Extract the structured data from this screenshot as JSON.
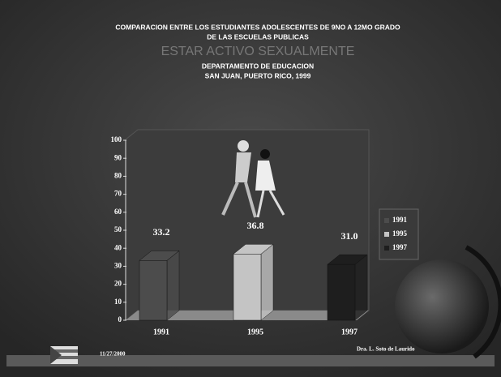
{
  "chart_data": {
    "type": "bar",
    "title": [
      "COMPARACION ENTRE LOS ESTUDIANTES ADOLESCENTES DE 9NO A 12MO GRADO",
      "DE LAS ESCUELAS PUBLICAS"
    ],
    "subtitle": "ESTAR ACTIVO SEXUALMENTE",
    "annotations": [
      "DEPARTAMENTO DE EDUCACION",
      "SAN JUAN, PUERTO RICO, 1999"
    ],
    "categories": [
      "1991",
      "1995",
      "1997"
    ],
    "values": [
      33.2,
      36.8,
      31
    ],
    "value_labels": [
      "33.2",
      "36.8",
      "31.0"
    ],
    "colors": [
      "#4c4c4c",
      "#c4c4c4",
      "#1e1e1e"
    ],
    "ylim": [
      0,
      100
    ],
    "yticks": [
      0,
      10,
      20,
      30,
      40,
      50,
      60,
      70,
      80,
      90,
      100
    ],
    "legend": "right",
    "date": "11/27/2000",
    "author": "Dra. L. Soto de Laurido"
  }
}
